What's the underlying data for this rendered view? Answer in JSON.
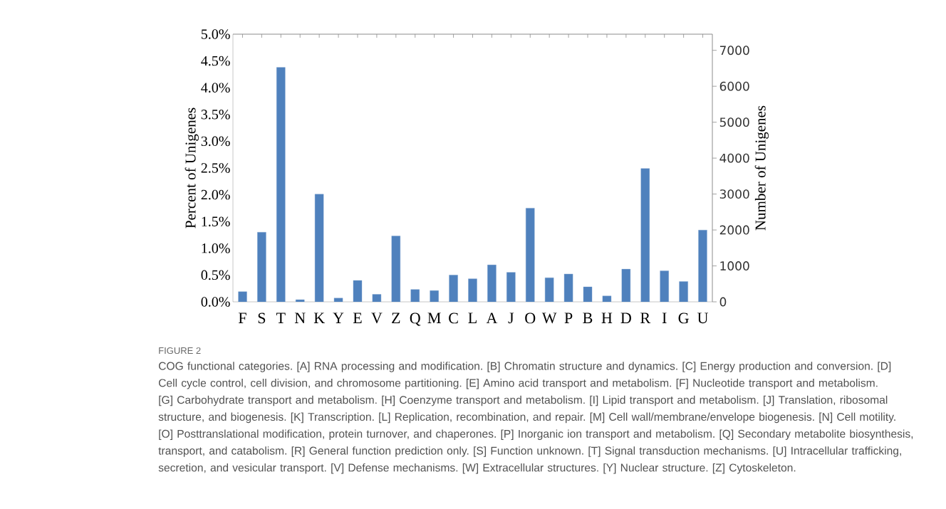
{
  "chart_data": {
    "type": "bar",
    "categories": [
      "F",
      "S",
      "T",
      "N",
      "K",
      "Y",
      "E",
      "V",
      "Z",
      "Q",
      "M",
      "C",
      "L",
      "A",
      "J",
      "O",
      "W",
      "P",
      "B",
      "H",
      "D",
      "R",
      "I",
      "G",
      "U"
    ],
    "values": [
      0.19,
      1.3,
      4.38,
      0.04,
      2.01,
      0.07,
      0.4,
      0.14,
      1.23,
      0.23,
      0.21,
      0.5,
      0.43,
      0.69,
      0.55,
      1.75,
      0.45,
      0.52,
      0.28,
      0.11,
      0.61,
      2.49,
      0.58,
      0.38,
      1.34
    ],
    "color": "#4f81bd",
    "ylabel": "Percent of Unigenes",
    "y2label": "Number of Unigenes",
    "ylim": [
      0,
      5
    ],
    "yticks": [
      {
        "value": 0,
        "label": "0.0%"
      },
      {
        "value": 0.5,
        "label": "0.5%"
      },
      {
        "value": 1,
        "label": "1.0%"
      },
      {
        "value": 1.5,
        "label": "1.5%"
      },
      {
        "value": 2,
        "label": "2.0%"
      },
      {
        "value": 2.5,
        "label": "2.5%"
      },
      {
        "value": 3,
        "label": "3.0%"
      },
      {
        "value": 3.5,
        "label": "3.5%"
      },
      {
        "value": 4,
        "label": "4.0%"
      },
      {
        "value": 4.5,
        "label": "4.5%"
      },
      {
        "value": 5,
        "label": "5.0%"
      }
    ],
    "y2lim": [
      0,
      7450
    ],
    "y2ticks": [
      0,
      1000,
      2000,
      3000,
      4000,
      5000,
      6000,
      7000
    ],
    "annotations": [
      "FIGURE 2",
      "COG functional categories. [A] RNA processing and modification. [B] Chromatin structure and dynamics. [C] Energy production and conversion. [D] Cell cycle control, cell division, and chromosome partitioning. [E] Amino acid transport and metabolism. [F] Nucleotide transport and metabolism. [G] Carbohydrate transport and metabolism. [H] Coenzyme transport and metabolism. [I] Lipid transport and metabolism. [J] Translation, ribosomal structure, and biogenesis. [K] Transcription. [L] Replication, recombination, and repair. [M] Cell wall/membrane/envelope biogenesis. [N] Cell motility. [O] Posttranslational modification, protein turnover, and chaperones. [P] Inorganic ion transport and metabolism. [Q] Secondary metabolite biosynthesis, transport, and catabolism. [R] General function prediction only. [S] Function unknown. [T] Signal transduction mechanisms. [U] Intracellular trafficking, secretion, and vesicular transport. [V] Defense mechanisms. [W] Extracellular structures. [Y] Nuclear structure. [Z] Cytoskeleton."
    ]
  }
}
